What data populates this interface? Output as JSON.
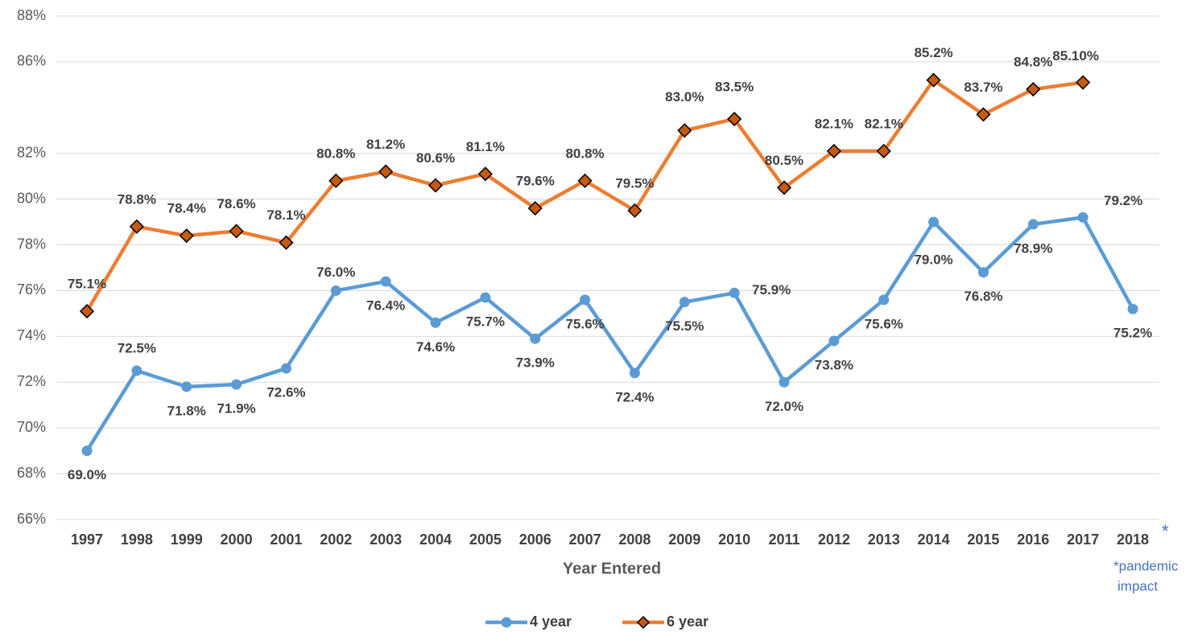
{
  "chart_data": {
    "type": "line",
    "x_label": "Year Entered",
    "annotations": [
      "*",
      "*pandemic",
      "impact"
    ],
    "categories": [
      "1997",
      "1998",
      "1999",
      "2000",
      "2001",
      "2002",
      "2003",
      "2004",
      "2005",
      "2006",
      "2007",
      "2008",
      "2009",
      "2010",
      "2011",
      "2012",
      "2013",
      "2014",
      "2015",
      "2016",
      "2017",
      "2018"
    ],
    "series": [
      {
        "name": "4 year",
        "color": "#5b9bd5",
        "marker": "circle",
        "values": [
          69.0,
          72.5,
          71.8,
          71.9,
          72.6,
          76.0,
          76.4,
          74.6,
          75.7,
          73.9,
          75.6,
          72.4,
          75.5,
          75.9,
          72.0,
          73.8,
          75.6,
          79.0,
          76.8,
          78.9,
          79.2,
          75.2
        ],
        "value_labels": [
          "69.0%",
          "72.5%",
          "71.8%",
          "71.9%",
          "72.6%",
          "76.0%",
          "76.4%",
          "74.6%",
          "75.7%",
          "73.9%",
          "75.6%",
          "72.4%",
          "75.5%",
          "75.9%",
          "72.0%",
          "73.8%",
          "75.6%",
          "79.0%",
          "76.8%",
          "78.9%",
          "79.2%",
          "75.2%"
        ]
      },
      {
        "name": "6 year",
        "color": "#ed7d31",
        "marker": "diamond",
        "marker_color": "#c55a11",
        "values": [
          75.1,
          78.8,
          78.4,
          78.6,
          78.1,
          80.8,
          81.2,
          80.6,
          81.1,
          79.6,
          80.8,
          79.5,
          83.0,
          83.5,
          80.5,
          82.1,
          82.1,
          85.2,
          83.7,
          84.8,
          85.1,
          null
        ],
        "value_labels": [
          "75.1%",
          "78.8%",
          "78.4%",
          "78.6%",
          "78.1%",
          "80.8%",
          "81.2%",
          "80.6%",
          "81.1%",
          "79.6%",
          "80.8%",
          "79.5%",
          "83.0%",
          "83.5%",
          "80.5%",
          "82.1%",
          "82.1%",
          "85.2%",
          "83.7%",
          "84.8%",
          "85.10%",
          null
        ]
      }
    ],
    "ylim": [
      66,
      88
    ],
    "yticks": [
      {
        "value": 66,
        "label": "66%"
      },
      {
        "value": 68,
        "label": "68%"
      },
      {
        "value": 70,
        "label": "70%"
      },
      {
        "value": 72,
        "label": "72%"
      },
      {
        "value": 74,
        "label": "74%"
      },
      {
        "value": 76,
        "label": "76%"
      },
      {
        "value": 78,
        "label": "78%"
      },
      {
        "value": 80,
        "label": "80%"
      },
      {
        "value": 82,
        "label": "82%"
      },
      {
        "value": 86,
        "label": "86%"
      },
      {
        "value": 88,
        "label": "88%"
      }
    ],
    "grid": true,
    "legend": "bottom"
  }
}
